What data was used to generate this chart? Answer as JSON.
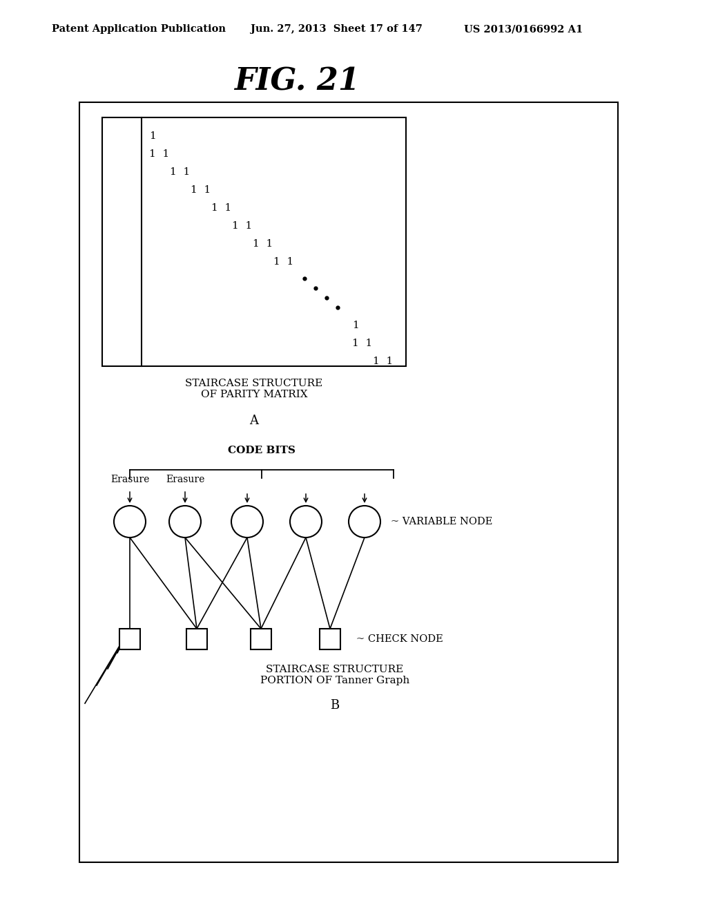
{
  "title": "FIG. 21",
  "header_left": "Patent Application Publication",
  "header_center": "Jun. 27, 2013  Sheet 17 of 147",
  "header_right": "US 2013/0166992 A1",
  "bg_color": "#ffffff",
  "matrix_label_A": "A",
  "matrix_title": "STAIRCASE STRUCTURE\nOF PARITY MATRIX",
  "tanner_label_B": "B",
  "tanner_title": "STAIRCASE STRUCTURE\nPORTION OF Tanner Graph",
  "code_bits_label": "CODE BITS",
  "variable_node_label": "~ VARIABLE NODE",
  "check_node_label": "~ CHECK NODE",
  "erasure_labels": [
    "Erasure",
    "Erasure"
  ]
}
